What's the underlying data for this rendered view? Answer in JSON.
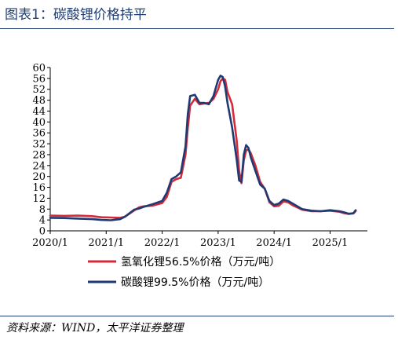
{
  "header": {
    "title": "图表1：碳酸锂价格持平"
  },
  "footer": {
    "source": "资料来源：WIND，太平洋证券整理"
  },
  "chart_data": {
    "type": "line",
    "ylim": [
      0,
      60
    ],
    "yticks": [
      0,
      4,
      8,
      12,
      16,
      20,
      24,
      28,
      32,
      36,
      40,
      44,
      48,
      52,
      56,
      60
    ],
    "xticks": [
      "2020/1",
      "2021/1",
      "2022/1",
      "2023/1",
      "2024/1",
      "2025/1"
    ],
    "grid": false,
    "legend_position": "bottom",
    "series": [
      {
        "name": "氢氧化锂56.5%价格（万元/吨）",
        "color": "#d42a3a",
        "points": [
          [
            0,
            5.6
          ],
          [
            3,
            5.5
          ],
          [
            6,
            5.6
          ],
          [
            9,
            5.4
          ],
          [
            11,
            5.0
          ],
          [
            13,
            4.9
          ],
          [
            15,
            4.8
          ],
          [
            16,
            5.2
          ],
          [
            18,
            7.5
          ],
          [
            19,
            8.6
          ],
          [
            20,
            9.0
          ],
          [
            22,
            9.3
          ],
          [
            24,
            10.2
          ],
          [
            25,
            12.5
          ],
          [
            26,
            18.0
          ],
          [
            27,
            19.0
          ],
          [
            28,
            19.5
          ],
          [
            29,
            28.0
          ],
          [
            29.5,
            38.0
          ],
          [
            30,
            46.0
          ],
          [
            31,
            48.5
          ],
          [
            32,
            46.5
          ],
          [
            33,
            46.8
          ],
          [
            34,
            47.0
          ],
          [
            35,
            48.5
          ],
          [
            36,
            52.0
          ],
          [
            36.5,
            55.0
          ],
          [
            37,
            56.0
          ],
          [
            37.5,
            55.5
          ],
          [
            38,
            51.0
          ],
          [
            39,
            46.5
          ],
          [
            40,
            33.0
          ],
          [
            40.5,
            22.0
          ],
          [
            41,
            17.5
          ],
          [
            41.5,
            26.0
          ],
          [
            42,
            29.5
          ],
          [
            42.5,
            30.0
          ],
          [
            43,
            28.5
          ],
          [
            44,
            24.0
          ],
          [
            45,
            18.0
          ],
          [
            46,
            15.5
          ],
          [
            47,
            10.5
          ],
          [
            48,
            9.0
          ],
          [
            49,
            9.2
          ],
          [
            50,
            10.8
          ],
          [
            51,
            10.5
          ],
          [
            52,
            9.4
          ],
          [
            54,
            7.8
          ],
          [
            56,
            7.2
          ],
          [
            58,
            7.2
          ],
          [
            60,
            7.4
          ],
          [
            62,
            7.0
          ],
          [
            63,
            6.5
          ],
          [
            64,
            6.2
          ],
          [
            65,
            6.4
          ],
          [
            65.5,
            7.3
          ]
        ]
      },
      {
        "name": "碳酸锂99.5%价格（万元/吨）",
        "color": "#1f3a73",
        "points": [
          [
            0,
            4.8
          ],
          [
            3,
            4.7
          ],
          [
            6,
            4.5
          ],
          [
            9,
            4.3
          ],
          [
            11,
            4.0
          ],
          [
            13,
            3.9
          ],
          [
            15,
            4.3
          ],
          [
            16,
            5.2
          ],
          [
            18,
            7.8
          ],
          [
            19,
            8.2
          ],
          [
            20,
            8.8
          ],
          [
            22,
            9.8
          ],
          [
            24,
            11.0
          ],
          [
            25,
            14.0
          ],
          [
            26,
            19.0
          ],
          [
            27,
            20.0
          ],
          [
            28,
            21.5
          ],
          [
            29,
            31.0
          ],
          [
            29.5,
            43.0
          ],
          [
            30,
            49.5
          ],
          [
            31,
            50.0
          ],
          [
            32,
            47.0
          ],
          [
            33,
            47.0
          ],
          [
            34,
            46.5
          ],
          [
            35,
            49.5
          ],
          [
            36,
            55.5
          ],
          [
            36.5,
            57.0
          ],
          [
            37,
            56.5
          ],
          [
            37.5,
            53.0
          ],
          [
            38,
            47.0
          ],
          [
            39,
            38.0
          ],
          [
            40,
            26.0
          ],
          [
            40.5,
            18.5
          ],
          [
            41,
            18.0
          ],
          [
            41.5,
            28.0
          ],
          [
            42,
            31.5
          ],
          [
            42.5,
            30.5
          ],
          [
            43,
            27.0
          ],
          [
            44,
            22.0
          ],
          [
            45,
            17.0
          ],
          [
            46,
            15.5
          ],
          [
            47,
            11.0
          ],
          [
            48,
            9.5
          ],
          [
            49,
            10.0
          ],
          [
            50,
            11.5
          ],
          [
            51,
            11.0
          ],
          [
            52,
            10.0
          ],
          [
            54,
            8.0
          ],
          [
            56,
            7.4
          ],
          [
            58,
            7.2
          ],
          [
            60,
            7.6
          ],
          [
            62,
            7.2
          ],
          [
            63,
            6.8
          ],
          [
            64,
            6.3
          ],
          [
            65,
            6.5
          ],
          [
            65.5,
            7.6
          ]
        ]
      }
    ]
  }
}
